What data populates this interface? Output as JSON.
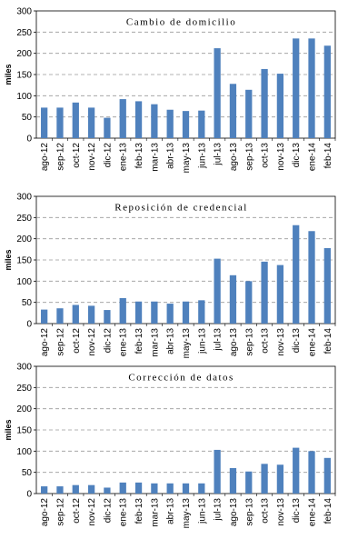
{
  "chart_data": [
    {
      "type": "bar",
      "title": "Cambio de domicilio",
      "ylabel": "miles",
      "ylim": [
        0,
        300
      ],
      "yticks": [
        0,
        50,
        100,
        150,
        200,
        250,
        300
      ],
      "grid": true,
      "color": "#4f81bd",
      "categories": [
        "ago-12",
        "sep-12",
        "oct-12",
        "nov-12",
        "dic-12",
        "ene-13",
        "feb-13",
        "mar-13",
        "abr-13",
        "may-13",
        "jun-13",
        "jul-13",
        "ago-13",
        "sep-13",
        "oct-13",
        "nov-13",
        "dic-13",
        "ene-14",
        "feb-14"
      ],
      "values": [
        72,
        72,
        84,
        72,
        48,
        92,
        87,
        80,
        67,
        64,
        65,
        212,
        128,
        114,
        163,
        152,
        235,
        235,
        218
      ]
    },
    {
      "type": "bar",
      "title": "Reposición de credencial",
      "ylabel": "miles",
      "ylim": [
        0,
        300
      ],
      "yticks": [
        0,
        50,
        100,
        150,
        200,
        250,
        300
      ],
      "grid": true,
      "color": "#4f81bd",
      "categories": [
        "ago-12",
        "sep-12",
        "oct-12",
        "nov-12",
        "dic-12",
        "ene-13",
        "feb-13",
        "mar-13",
        "abr-13",
        "may-13",
        "jun-13",
        "jul-13",
        "ago-13",
        "sep-13",
        "oct-13",
        "nov-13",
        "dic-13",
        "ene-14",
        "feb-14"
      ],
      "values": [
        33,
        36,
        44,
        42,
        32,
        60,
        52,
        52,
        47,
        52,
        55,
        153,
        114,
        100,
        146,
        138,
        232,
        218,
        178
      ]
    },
    {
      "type": "bar",
      "title": "Corrección de datos",
      "ylabel": "miles",
      "ylim": [
        0,
        300
      ],
      "yticks": [
        0,
        50,
        100,
        150,
        200,
        250,
        300
      ],
      "grid": true,
      "color": "#4f81bd",
      "categories": [
        "ago-12",
        "sep-12",
        "oct-12",
        "nov-12",
        "dic-12",
        "ene-13",
        "feb-13",
        "mar-13",
        "abr-13",
        "may-13",
        "jun-13",
        "jul-13",
        "ago-13",
        "sep-13",
        "oct-13",
        "nov-13",
        "dic-13",
        "ene-14",
        "feb-14"
      ],
      "values": [
        17,
        17,
        20,
        20,
        14,
        26,
        26,
        24,
        24,
        24,
        24,
        103,
        60,
        52,
        70,
        68,
        108,
        100,
        84
      ]
    }
  ]
}
